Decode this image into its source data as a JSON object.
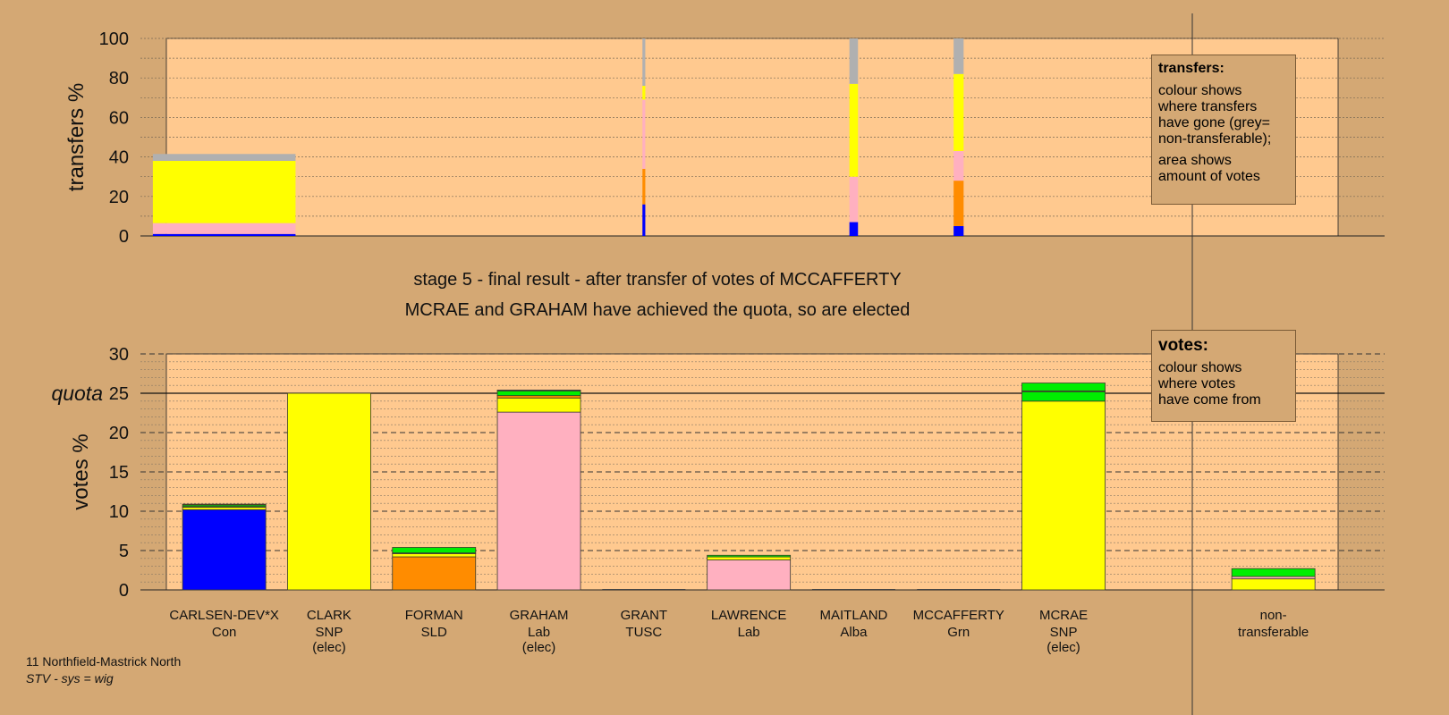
{
  "colors": {
    "background": "#d4a874",
    "plot_bg": "#ffc98f",
    "Con": "#0000ff",
    "SNP": "#ffff00",
    "SLD": "#ff8c00",
    "Lab": "#ffb0c0",
    "Grn": "#00ee00",
    "Alba": "#8a2be2",
    "TUSC": "#c83232",
    "non_transferable": "#b0b0b0"
  },
  "captions": {
    "line1": "stage 5 - final result - after transfer of votes of MCCAFFERTY",
    "line2": "MCRAE and GRAHAM have achieved the quota, so are elected"
  },
  "footnote": {
    "ward": "11 Northfield-Mastrick North",
    "system": "STV - sys = wig"
  },
  "transfers_legend": {
    "title": "transfers:",
    "lines1": [
      "colour shows",
      "where transfers",
      "have gone (grey=",
      "non-transferable);"
    ],
    "lines2": [
      "area shows",
      "amount of votes"
    ]
  },
  "votes_legend": {
    "title": "votes:",
    "lines": [
      "colour shows",
      "where votes",
      "have come from"
    ]
  },
  "chart_data": [
    {
      "type": "bar",
      "ylabel": "transfers %",
      "ylim": [
        0,
        100
      ],
      "yticks": [
        0,
        20,
        40,
        60,
        80,
        100
      ],
      "grid": true,
      "bars": [
        {
          "category": "CARLSEN-DEV*X",
          "width_share": 1.0,
          "segments": [
            {
              "party": "Con",
              "value": 1
            },
            {
              "party": "Lab",
              "value": 5.5
            },
            {
              "party": "SNP",
              "value": 31.5
            },
            {
              "party": "non_transferable",
              "value": 3.5
            }
          ]
        },
        {
          "category": "GRANT",
          "width_share": 0.02,
          "segments": [
            {
              "party": "Con",
              "value": 16
            },
            {
              "party": "SLD",
              "value": 18
            },
            {
              "party": "Lab",
              "value": 35
            },
            {
              "party": "SNP",
              "value": 7
            },
            {
              "party": "non_transferable",
              "value": 24
            }
          ]
        },
        {
          "category": "MAITLAND",
          "width_share": 0.06,
          "segments": [
            {
              "party": "Con",
              "value": 7
            },
            {
              "party": "Lab",
              "value": 23
            },
            {
              "party": "SNP",
              "value": 47
            },
            {
              "party": "non_transferable",
              "value": 23
            }
          ]
        },
        {
          "category": "MCCAFFERTY",
          "width_share": 0.07,
          "segments": [
            {
              "party": "Con",
              "value": 5
            },
            {
              "party": "SLD",
              "value": 23
            },
            {
              "party": "Lab",
              "value": 15
            },
            {
              "party": "SNP",
              "value": 39
            },
            {
              "party": "non_transferable",
              "value": 18
            }
          ]
        }
      ]
    },
    {
      "type": "bar",
      "ylabel": "votes %",
      "ylim": [
        0,
        30
      ],
      "yticks": [
        0,
        5,
        10,
        15,
        20,
        25,
        30
      ],
      "quota": 25,
      "quota_label": "quota",
      "grid": true,
      "categories": [
        {
          "name": "CARLSEN-DEV*X",
          "party": "Con",
          "status": ""
        },
        {
          "name": "CLARK",
          "party": "SNP",
          "status": "(elec)"
        },
        {
          "name": "FORMAN",
          "party": "SLD",
          "status": ""
        },
        {
          "name": "GRAHAM",
          "party": "Lab",
          "status": "(elec)"
        },
        {
          "name": "GRANT",
          "party": "TUSC",
          "status": ""
        },
        {
          "name": "LAWRENCE",
          "party": "Lab",
          "status": ""
        },
        {
          "name": "MAITLAND",
          "party": "Alba",
          "status": ""
        },
        {
          "name": "MCCAFFERTY",
          "party": "Grn",
          "status": ""
        },
        {
          "name": "MCRAE",
          "party": "SNP",
          "status": "(elec)"
        },
        {
          "name": "",
          "party": "",
          "status": ""
        },
        {
          "name": "non-",
          "party": "transferable",
          "status": ""
        }
      ],
      "bars": [
        {
          "segments": [
            {
              "party": "Con",
              "value": 10.2
            },
            {
              "party": "SNP",
              "value": 0.3
            },
            {
              "party": "Lab",
              "value": 0.1
            },
            {
              "party": "Grn",
              "value": 0.2
            },
            {
              "party": "SLD",
              "value": 0.1
            }
          ]
        },
        {
          "segments": [
            {
              "party": "SNP",
              "value": 25.0
            }
          ]
        },
        {
          "segments": [
            {
              "party": "SLD",
              "value": 4.2
            },
            {
              "party": "SNP",
              "value": 0.4
            },
            {
              "party": "Lab",
              "value": 0.1
            },
            {
              "party": "Grn",
              "value": 0.7
            }
          ]
        },
        {
          "segments": [
            {
              "party": "Lab",
              "value": 22.6
            },
            {
              "party": "SNP",
              "value": 1.8
            },
            {
              "party": "SLD",
              "value": 0.3
            },
            {
              "party": "Grn",
              "value": 0.6
            },
            {
              "party": "Con",
              "value": 0.1
            }
          ]
        },
        {
          "segments": [
            {
              "party": "TUSC",
              "value": 0.0
            }
          ]
        },
        {
          "segments": [
            {
              "party": "Lab",
              "value": 3.8
            },
            {
              "party": "SNP",
              "value": 0.4
            },
            {
              "party": "Grn",
              "value": 0.2
            }
          ]
        },
        {
          "segments": [
            {
              "party": "Alba",
              "value": 0.0
            }
          ]
        },
        {
          "segments": [
            {
              "party": "Grn",
              "value": 0.0
            }
          ]
        },
        {
          "segments": [
            {
              "party": "SNP",
              "value": 24.0
            },
            {
              "party": "Grn",
              "value": 1.2
            },
            {
              "party": "Lab",
              "value": 0.1
            },
            {
              "party": "Grn",
              "value": 1.0
            }
          ]
        },
        {
          "segments": []
        },
        {
          "segments": [
            {
              "party": "SNP",
              "value": 1.4
            },
            {
              "party": "Lab",
              "value": 0.3
            },
            {
              "party": "Grn",
              "value": 1.0
            }
          ]
        }
      ]
    }
  ]
}
